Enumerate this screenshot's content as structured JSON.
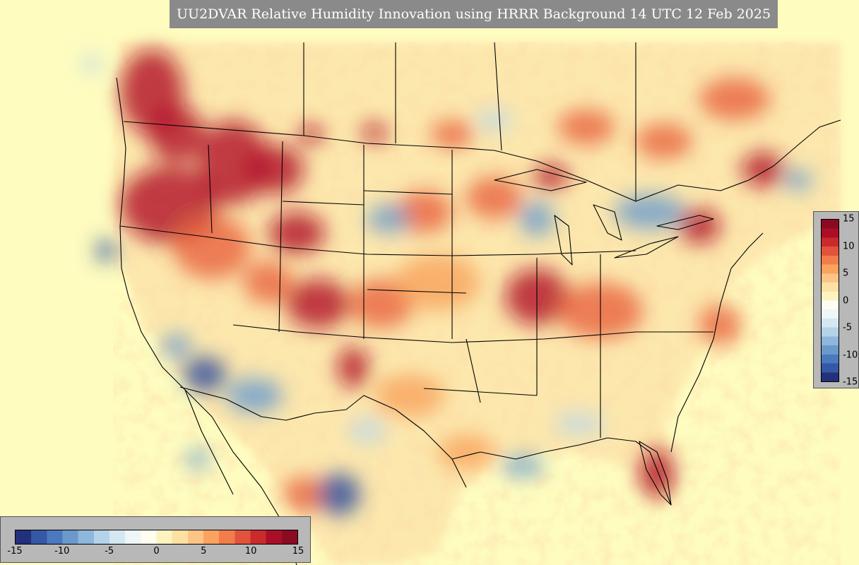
{
  "title": "UU2DVAR Relative Humidity Innovation using HRRR Background 14 UTC 12 Feb 2025",
  "colorbar": {
    "min": -15,
    "max": 15,
    "colors": [
      "#23307a",
      "#3557a5",
      "#4b79bd",
      "#6c99cc",
      "#8fb6db",
      "#b4d3e8",
      "#d4e8f2",
      "#eef6f8",
      "#fefdf0",
      "#fdf3c1",
      "#fde1a2",
      "#fcc585",
      "#f9a35f",
      "#f27c4a",
      "#e1533a",
      "#c92a2c",
      "#a90f26",
      "#8a0a22"
    ],
    "right_ticks": [
      "15",
      "10",
      "5",
      "0",
      "-5",
      "-10",
      "-15"
    ],
    "bottom_ticks": [
      "-15",
      "-10",
      "-5",
      "0",
      "5",
      "10",
      "15"
    ]
  },
  "map_colors": {
    "background": "#fefcbf",
    "moist_strong": "#b01226",
    "moist": "#e8623e",
    "moist_light": "#f7a35c",
    "dry_strong": "#2b4b9b",
    "dry": "#6a9bcd",
    "dry_light": "#bcd7ea",
    "boundary": "#000000"
  }
}
